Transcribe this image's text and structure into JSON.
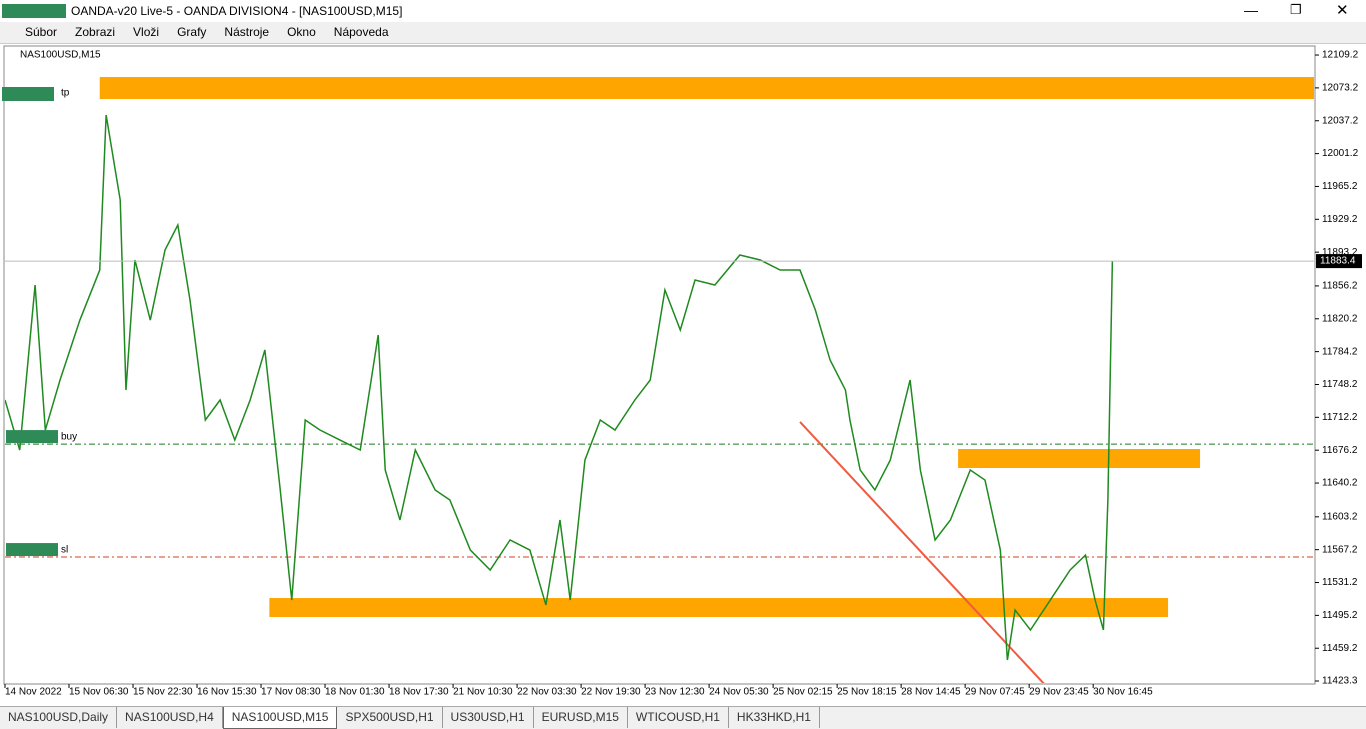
{
  "window": {
    "title": "OANDA-v20 Live-5 - OANDA DIVISION4 - [NAS100USD,M15]"
  },
  "menu": [
    "Súbor",
    "Zobrazi",
    "Vloži",
    "Grafy",
    "Nástroje",
    "Okno",
    "Nápoveda"
  ],
  "tabs": [
    "NAS100USD,Daily",
    "NAS100USD,H4",
    "NAS100USD,M15",
    "SPX500USD,H1",
    "US30USD,H1",
    "EURUSD,M15",
    "WTICOUSD,H1",
    "HK33HKD,H1"
  ],
  "active_tab": 2,
  "chart_data": {
    "type": "line",
    "title": "NAS100USD,M15",
    "xlim": [
      0,
      20.45
    ],
    "ylim": [
      11421.1,
      12119.1
    ],
    "xticks": [
      {
        "value": 0,
        "label": "14 Nov 2022"
      },
      {
        "value": 1,
        "label": "15 Nov 06:30"
      },
      {
        "value": 2,
        "label": "15 Nov 22:30"
      },
      {
        "value": 3,
        "label": "16 Nov 15:30"
      },
      {
        "value": 4,
        "label": "17 Nov 08:30"
      },
      {
        "value": 5,
        "label": "18 Nov 01:30"
      },
      {
        "value": 6,
        "label": "18 Nov 17:30"
      },
      {
        "value": 7,
        "label": "21 Nov 10:30"
      },
      {
        "value": 8,
        "label": "22 Nov 03:30"
      },
      {
        "value": 9,
        "label": "22 Nov 19:30"
      },
      {
        "value": 10,
        "label": "23 Nov 12:30"
      },
      {
        "value": 11,
        "label": "24 Nov 05:30"
      },
      {
        "value": 12,
        "label": "25 Nov 02:15"
      },
      {
        "value": 13,
        "label": "25 Nov 18:15"
      },
      {
        "value": 14,
        "label": "28 Nov 14:45"
      },
      {
        "value": 15,
        "label": "29 Nov 07:45"
      },
      {
        "value": 16,
        "label": "29 Nov 23:45"
      },
      {
        "value": 17,
        "label": "30 Nov 16:45"
      }
    ],
    "yticks": [
      12109.2,
      12073.2,
      12037.2,
      12001.2,
      11965.2,
      11929.2,
      11893.2,
      11856.2,
      11820.2,
      11784.2,
      11748.2,
      11712.2,
      11676.2,
      11640.2,
      11603.2,
      11567.2,
      11531.2,
      11495.2,
      11459.2,
      11423.3
    ],
    "x": [
      0,
      0.23,
      0.47,
      0.63,
      0.86,
      1.17,
      1.48,
      1.58,
      1.8,
      1.89,
      2.03,
      2.27,
      2.5,
      2.7,
      2.89,
      3.13,
      3.36,
      3.59,
      3.83,
      4.06,
      4.3,
      4.48,
      4.69,
      4.92,
      5.23,
      5.55,
      5.83,
      5.94,
      6.17,
      6.41,
      6.72,
      6.95,
      7.27,
      7.58,
      7.89,
      8.2,
      8.45,
      8.67,
      8.83,
      9.06,
      9.3,
      9.53,
      9.84,
      10.08,
      10.31,
      10.55,
      10.78,
      11.09,
      11.48,
      11.8,
      12.11,
      12.42,
      12.66,
      12.89,
      13.13,
      13.2,
      13.36,
      13.59,
      13.83,
      14.14,
      14.3,
      14.53,
      14.77,
      15.08,
      15.31,
      15.55,
      15.66,
      15.78,
      16.02,
      16.33,
      16.64,
      16.88,
      17.03,
      17.16,
      17.23,
      17.3
    ],
    "series": [
      {
        "color": "#1f8a1f",
        "values": [
          11731.2,
          11676.4,
          11857.2,
          11698.3,
          11753.1,
          11818.8,
          11873.6,
          12043.5,
          11950.3,
          11742.1,
          11884.6,
          11818.8,
          11895.5,
          11922.9,
          11840.8,
          11709.3,
          11731.2,
          11687.4,
          11731.2,
          11786.0,
          11632.6,
          11512.0,
          11709.3,
          11698.3,
          11687.4,
          11676.4,
          11802.4,
          11654.5,
          11599.7,
          11676.4,
          11632.6,
          11621.6,
          11566.8,
          11544.9,
          11577.8,
          11566.8,
          11506.6,
          11599.7,
          11512.0,
          11665.4,
          11709.3,
          11698.3,
          11731.2,
          11753.1,
          11851.7,
          11807.9,
          11862.7,
          11857.2,
          11890.1,
          11884.6,
          11873.6,
          11873.6,
          11829.8,
          11775.0,
          11742.1,
          11709.3,
          11654.5,
          11632.6,
          11665.4,
          11753.1,
          11654.5,
          11577.8,
          11599.7,
          11654.5,
          11643.5,
          11566.8,
          11446.3,
          11501.1,
          11479.2,
          11512.0,
          11544.9,
          11561.3,
          11512.0,
          11479.2,
          11621.6,
          11883.4
        ]
      }
    ],
    "zones": [
      {
        "x": [
          1.48,
          20.45
        ],
        "y": [
          12061.0,
          12085.1
        ],
        "color": "#ffa500"
      },
      {
        "x": [
          14.89,
          18.67
        ],
        "y": [
          11656.7,
          11677.5
        ],
        "color": "#ffa500"
      },
      {
        "x": [
          4.13,
          18.17
        ],
        "y": [
          11493.4,
          11514.2
        ],
        "color": "#ffa500"
      }
    ],
    "levels": [
      {
        "label": "buy",
        "value": 11682.9,
        "color": "#1f7a1f"
      },
      {
        "label": "sl",
        "value": 11559.1,
        "color": "#d04020"
      }
    ],
    "annotations": [
      {
        "text": "tp",
        "y": 12067.6
      }
    ],
    "trendline": {
      "x": [
        12.42,
        16.25
      ],
      "y": [
        11707.1,
        11418.9
      ],
      "color": "#f05a40"
    }
  }
}
